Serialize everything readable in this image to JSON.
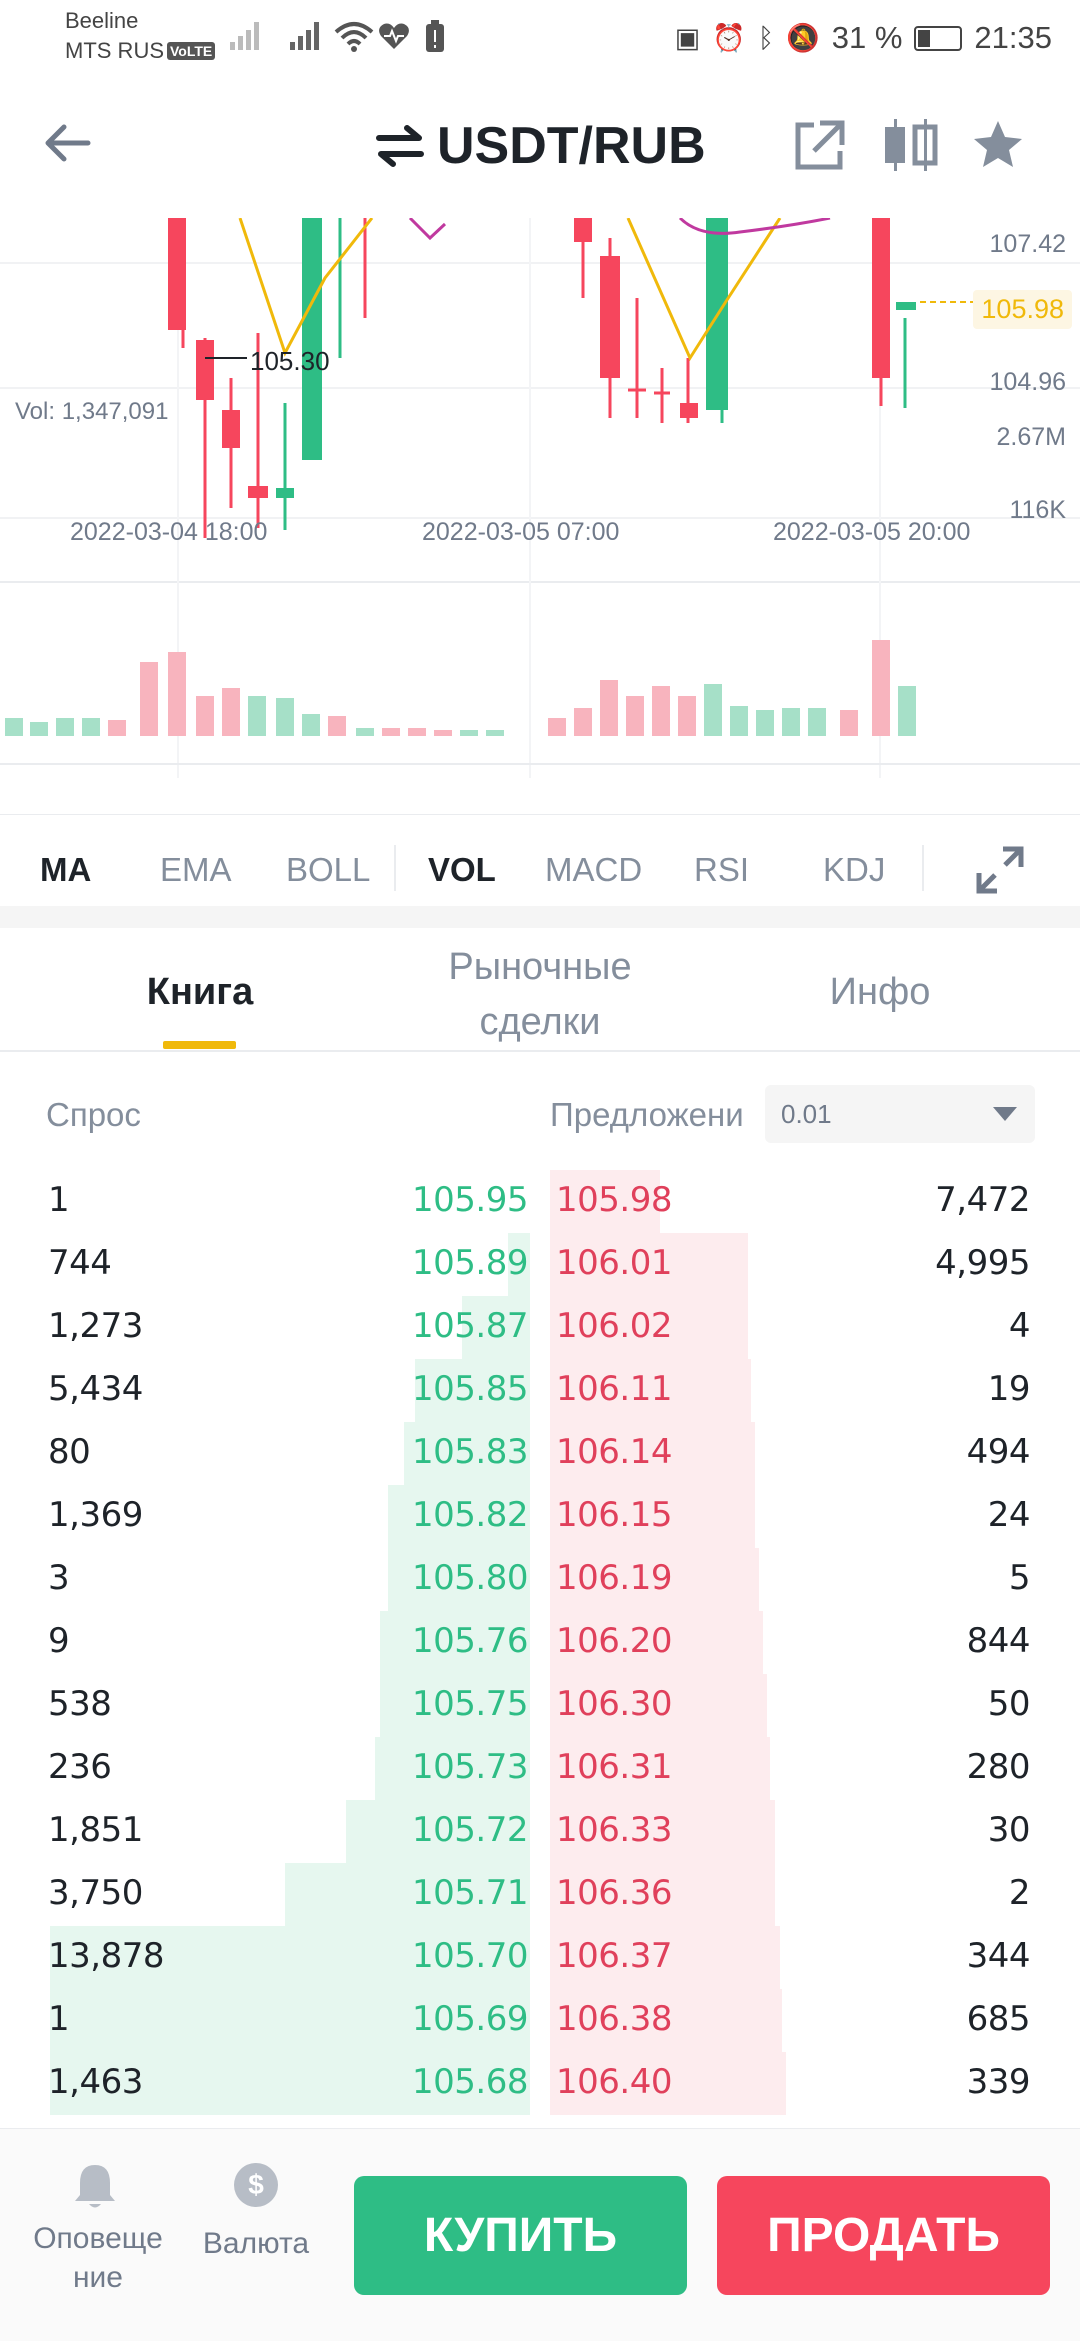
{
  "status_bar": {
    "carrier1": "Beeline",
    "carrier2": "MTS RUS",
    "volte": "VoLTE",
    "battery": "31 %",
    "time": "21:35"
  },
  "header": {
    "title": "USDT/RUB",
    "icons": [
      "back-arrow-icon",
      "swap-arrows-icon",
      "share-icon",
      "candle-chart-icon",
      "star-icon"
    ]
  },
  "chart": {
    "price_axis": [
      "107.42",
      "104.96"
    ],
    "current_price": "105.98",
    "low_marker": "105.30",
    "volume_label": "Vol: 1,347,091",
    "volume_axis": [
      "2.67M",
      "116K"
    ],
    "time_labels": [
      "2022-03-04 18:00",
      "2022-03-05 07:00",
      "2022-03-05 20:00"
    ],
    "colors": {
      "up": "#2ebd85",
      "down": "#f6465d",
      "ma": "#f0b90b",
      "ma2": "#c0399f"
    }
  },
  "indicators": {
    "main": [
      "MA",
      "EMA",
      "BOLL"
    ],
    "sub": [
      "VOL",
      "MACD",
      "RSI",
      "KDJ"
    ],
    "active_main": "MA",
    "active_sub": "VOL"
  },
  "book_tabs": {
    "tab1": "Книга",
    "tab2_line1": "Рыночные",
    "tab2_line2": "сделки",
    "tab3": "Инфо",
    "active": "Книга"
  },
  "order_book": {
    "bid_header": "Спрос",
    "ask_header": "Предложени",
    "precision": "0.01",
    "rows": [
      {
        "bid_qty": "1",
        "bid_price": "105.95",
        "ask_price": "105.98",
        "ask_qty": "7,472"
      },
      {
        "bid_qty": "744",
        "bid_price": "105.89",
        "ask_price": "106.01",
        "ask_qty": "4,995"
      },
      {
        "bid_qty": "1,273",
        "bid_price": "105.87",
        "ask_price": "106.02",
        "ask_qty": "4"
      },
      {
        "bid_qty": "5,434",
        "bid_price": "105.85",
        "ask_price": "106.11",
        "ask_qty": "19"
      },
      {
        "bid_qty": "80",
        "bid_price": "105.83",
        "ask_price": "106.14",
        "ask_qty": "494"
      },
      {
        "bid_qty": "1,369",
        "bid_price": "105.82",
        "ask_price": "106.15",
        "ask_qty": "24"
      },
      {
        "bid_qty": "3",
        "bid_price": "105.80",
        "ask_price": "106.19",
        "ask_qty": "5"
      },
      {
        "bid_qty": "9",
        "bid_price": "105.76",
        "ask_price": "106.20",
        "ask_qty": "844"
      },
      {
        "bid_qty": "538",
        "bid_price": "105.75",
        "ask_price": "106.30",
        "ask_qty": "50"
      },
      {
        "bid_qty": "236",
        "bid_price": "105.73",
        "ask_price": "106.31",
        "ask_qty": "280"
      },
      {
        "bid_qty": "1,851",
        "bid_price": "105.72",
        "ask_price": "106.33",
        "ask_qty": "30"
      },
      {
        "bid_qty": "3,750",
        "bid_price": "105.71",
        "ask_price": "106.36",
        "ask_qty": "2"
      },
      {
        "bid_qty": "13,878",
        "bid_price": "105.70",
        "ask_price": "106.37",
        "ask_qty": "344"
      },
      {
        "bid_qty": "1",
        "bid_price": "105.69",
        "ask_price": "106.38",
        "ask_qty": "685"
      },
      {
        "bid_qty": "1,463",
        "bid_price": "105.68",
        "ask_price": "106.40",
        "ask_qty": "339"
      }
    ],
    "colors": {
      "bid": "#2ebd85",
      "ask": "#e0405b"
    }
  },
  "bottom_bar": {
    "alert_line1": "Оповеще",
    "alert_line2": "ние",
    "currency_label": "Валюта",
    "buy": "КУПИТЬ",
    "sell": "ПРОДАТЬ"
  }
}
